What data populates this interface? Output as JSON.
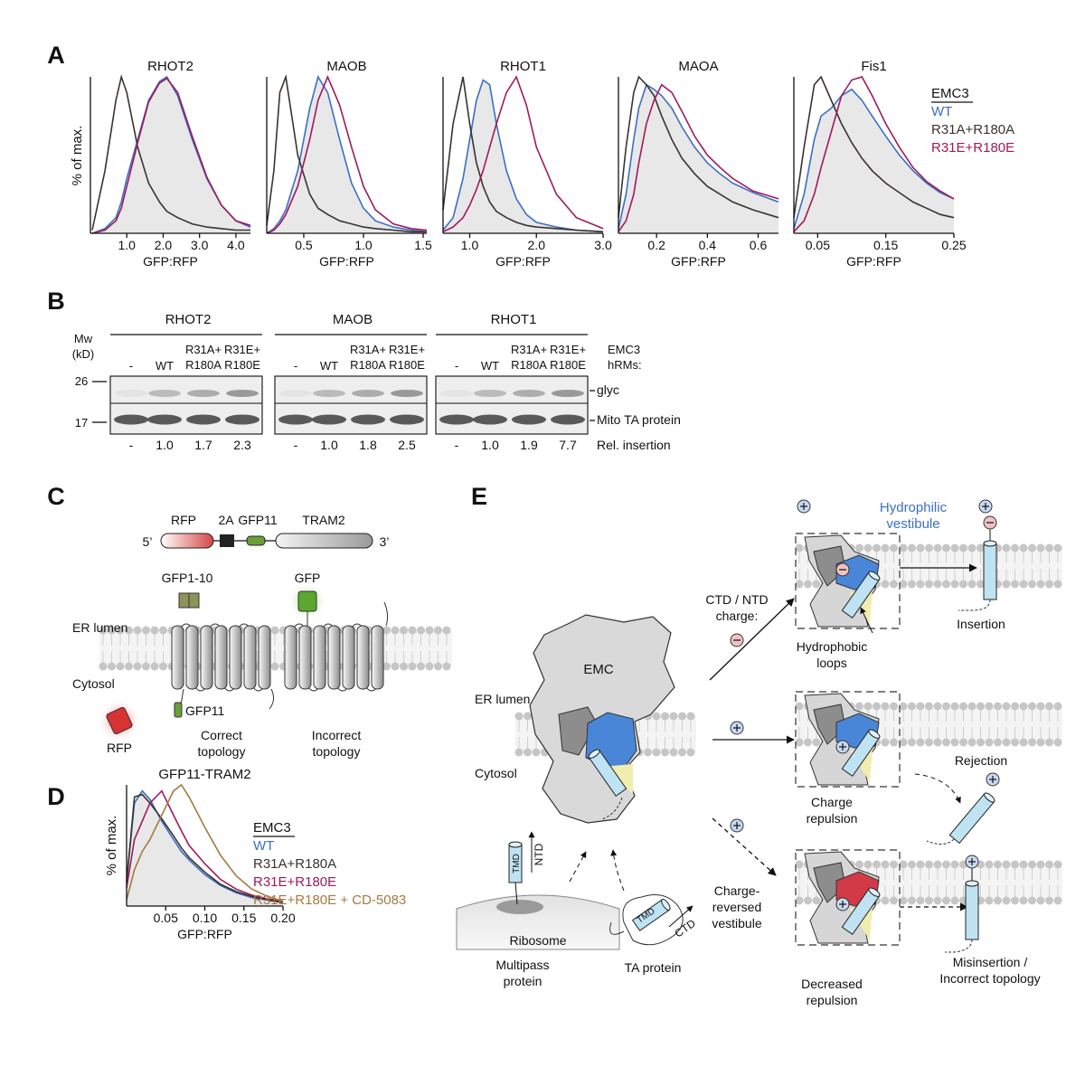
{
  "panel_labels": [
    "A",
    "B",
    "C",
    "D",
    "E"
  ],
  "panel_a": {
    "y_label": "% of max.",
    "x_label": "GFP:RFP",
    "legend": {
      "title": "EMC3",
      "entries": [
        {
          "name": "WT",
          "color": "#3b6fc4"
        },
        {
          "name": "R31A+R180A",
          "color": "#3a332f"
        },
        {
          "name": "R31E+R180E",
          "color": "#9e1a5c"
        }
      ]
    },
    "fill": {
      "series": 0,
      "color": "#e8e8e8"
    },
    "charts": [
      {
        "type": "line",
        "title": "RHOT2",
        "xlim": [
          0,
          4.4
        ],
        "ylim": [
          0,
          100
        ],
        "xticks": [
          {
            "value": 1,
            "label": "1.0"
          },
          {
            "value": 2,
            "label": "2.0"
          },
          {
            "value": 3,
            "label": "3.0"
          },
          {
            "value": 4,
            "label": "4.0"
          }
        ],
        "x": [
          0.05,
          0.4,
          0.7,
          0.85,
          1.0,
          1.3,
          1.6,
          1.9,
          2.1,
          2.4,
          2.8,
          3.2,
          3.6,
          4.0,
          4.4
        ],
        "series": [
          {
            "values": [
              0,
              3,
              10,
              20,
              35,
              60,
              85,
              97,
              100,
              88,
              60,
              35,
              18,
              8,
              4
            ]
          },
          {
            "values": [
              2,
              40,
              85,
              100,
              90,
              55,
              32,
              20,
              14,
              10,
              6,
              4,
              3,
              2,
              2
            ]
          },
          {
            "values": [
              0,
              2,
              8,
              16,
              30,
              58,
              84,
              96,
              99,
              90,
              62,
              36,
              18,
              8,
              5
            ]
          }
        ]
      },
      {
        "type": "line",
        "title": "MAOB",
        "xlim": [
          0.19,
          1.53
        ],
        "ylim": [
          0,
          100
        ],
        "xticks": [
          0.5,
          {
            "value": 1,
            "label": "1.0"
          },
          1.5
        ],
        "x": [
          0.19,
          0.25,
          0.3,
          0.35,
          0.45,
          0.55,
          0.62,
          0.7,
          0.8,
          0.9,
          1.0,
          1.1,
          1.25,
          1.4,
          1.53
        ],
        "series": [
          {
            "values": [
              0,
              3,
              8,
              15,
              40,
              80,
              100,
              90,
              60,
              32,
              16,
              8,
              4,
              2,
              1
            ]
          },
          {
            "values": [
              5,
              40,
              90,
              100,
              50,
              25,
              16,
              12,
              8,
              6,
              4,
              3,
              2,
              1,
              1
            ]
          },
          {
            "values": [
              0,
              2,
              6,
              12,
              30,
              60,
              85,
              100,
              82,
              55,
              30,
              15,
              6,
              3,
              2
            ]
          }
        ]
      },
      {
        "type": "line",
        "title": "RHOT1",
        "xlim": [
          0.6,
          3.0
        ],
        "ylim": [
          0,
          100
        ],
        "xticks": [
          {
            "value": 1,
            "label": "1.0"
          },
          {
            "value": 2,
            "label": "2.0"
          },
          {
            "value": 3,
            "label": "3.0"
          }
        ],
        "x": [
          0.6,
          0.75,
          0.9,
          1.0,
          1.1,
          1.2,
          1.3,
          1.4,
          1.55,
          1.7,
          1.85,
          2.0,
          2.3,
          2.6,
          3.0
        ],
        "series": [
          {
            "values": [
              2,
              10,
              35,
              60,
              85,
              98,
              95,
              70,
              40,
              22,
              12,
              7,
              4,
              2,
              1
            ]
          },
          {
            "values": [
              15,
              70,
              100,
              70,
              45,
              30,
              20,
              14,
              10,
              7,
              5,
              4,
              3,
              2,
              1
            ]
          },
          {
            "values": [
              1,
              4,
              10,
              18,
              28,
              40,
              55,
              70,
              90,
              100,
              82,
              55,
              25,
              10,
              3
            ]
          }
        ]
      },
      {
        "type": "line",
        "title": "MAOA",
        "xlim": [
          0.05,
          0.68
        ],
        "ylim": [
          0,
          100
        ],
        "xticks": [
          0.2,
          0.4,
          0.6
        ],
        "x": [
          0.05,
          0.08,
          0.11,
          0.13,
          0.16,
          0.19,
          0.22,
          0.26,
          0.3,
          0.35,
          0.4,
          0.45,
          0.5,
          0.58,
          0.68
        ],
        "series": [
          {
            "values": [
              3,
              25,
              60,
              80,
              95,
              92,
              88,
              80,
              68,
              55,
              45,
              38,
              32,
              26,
              20
            ]
          },
          {
            "values": [
              10,
              55,
              90,
              100,
              95,
              88,
              75,
              60,
              48,
              38,
              30,
              25,
              20,
              15,
              10
            ]
          },
          {
            "values": [
              1,
              8,
              25,
              45,
              70,
              85,
              95,
              90,
              78,
              62,
              50,
              42,
              35,
              27,
              22
            ]
          }
        ]
      },
      {
        "type": "line",
        "title": "Fis1",
        "xlim": [
          0.015,
          0.25
        ],
        "ylim": [
          0,
          100
        ],
        "xticks": [
          0.05,
          0.15,
          0.25
        ],
        "x": [
          0.015,
          0.03,
          0.045,
          0.055,
          0.07,
          0.085,
          0.1,
          0.115,
          0.13,
          0.15,
          0.17,
          0.19,
          0.21,
          0.23,
          0.25
        ],
        "series": [
          {
            "values": [
              3,
              25,
              60,
              75,
              80,
              88,
              92,
              85,
              75,
              62,
              50,
              40,
              32,
              26,
              22
            ]
          },
          {
            "values": [
              10,
              55,
              95,
              100,
              85,
              70,
              58,
              48,
              40,
              32,
              26,
              20,
              16,
              12,
              10
            ]
          },
          {
            "values": [
              1,
              8,
              25,
              42,
              65,
              88,
              98,
              100,
              88,
              70,
              55,
              42,
              33,
              27,
              22
            ]
          }
        ]
      }
    ]
  },
  "panel_b": {
    "mw": [
      "Mw",
      "(kD)"
    ],
    "markers": [
      "26",
      "17"
    ],
    "groups": [
      {
        "title": "RHOT2",
        "rel": [
          "-",
          "1.0",
          "1.7",
          "2.3"
        ]
      },
      {
        "title": "MAOB",
        "rel": [
          "-",
          "1.0",
          "1.8",
          "2.5"
        ]
      },
      {
        "title": "RHOT1",
        "rel": [
          "-",
          "1.0",
          "1.9",
          "7.7"
        ]
      }
    ],
    "columns": [
      [
        "-"
      ],
      [
        "WT"
      ],
      [
        "R31A+",
        "R180A"
      ],
      [
        "R31E+",
        "R180E"
      ]
    ],
    "condition_label": [
      "EMC3",
      "hRMs:"
    ],
    "band_labels": [
      "glyc",
      "Mito TA protein"
    ],
    "rel_label": "Rel. insertion"
  },
  "panel_c": {
    "construct": {
      "rfp": "RFP",
      "p2a": "2A",
      "gfp11": "GFP11",
      "tram2": "TRAM2",
      "five": "5’",
      "three": "3’"
    },
    "gfp1_10": "GFP1-10",
    "gfp": "GFP",
    "er_lumen": "ER lumen",
    "cytosol": "Cytosol",
    "gfp11": "GFP11",
    "rfp": "RFP",
    "correct": [
      "Correct",
      "topology"
    ],
    "incorrect": [
      "Incorrect",
      "topology"
    ]
  },
  "panel_d": {
    "y_label": "% of max.",
    "x_label": "GFP:RFP",
    "legend": {
      "title": "EMC3",
      "entries": [
        {
          "name": "WT",
          "color": "#3b6fc4"
        },
        {
          "name": "R31A+R180A",
          "color": "#3a332f"
        },
        {
          "name": "R31E+R180E",
          "color": "#9e1a5c"
        },
        {
          "name": "R31E+R180E + CD-5083",
          "color": "#a37b3e"
        }
      ]
    },
    "fill": {
      "series": 0,
      "color": "#e8e8e8"
    },
    "chart": {
      "type": "line",
      "title": "GFP11-TRAM2",
      "xlim": [
        0,
        0.2
      ],
      "ylim": [
        0,
        100
      ],
      "xticks": [
        0.05,
        {
          "value": 0.1,
          "label": "0.10"
        },
        0.15,
        {
          "value": 0.2,
          "label": "0.20"
        }
      ],
      "x": [
        0,
        0.01,
        0.02,
        0.03,
        0.045,
        0.06,
        0.07,
        0.08,
        0.1,
        0.12,
        0.14,
        0.16,
        0.18,
        0.2
      ],
      "series": [
        {
          "values": [
            20,
            85,
            95,
            88,
            70,
            55,
            45,
            38,
            26,
            17,
            11,
            7,
            5,
            3
          ]
        },
        {
          "values": [
            20,
            90,
            92,
            85,
            72,
            58,
            48,
            40,
            28,
            18,
            12,
            8,
            5,
            3
          ]
        },
        {
          "values": [
            15,
            55,
            70,
            85,
            95,
            75,
            62,
            50,
            35,
            22,
            14,
            9,
            6,
            4
          ]
        },
        {
          "values": [
            5,
            30,
            45,
            55,
            75,
            95,
            100,
            90,
            65,
            42,
            25,
            14,
            8,
            4
          ]
        }
      ]
    }
  },
  "panel_e": {
    "emc": "EMC",
    "er_lumen": "ER lumen",
    "cytosol": "Cytosol",
    "ntd": "NTD",
    "tmd": "TMD",
    "ribosome": "Ribosome",
    "multipass": [
      "Multipass",
      "protein"
    ],
    "ta_tmd": "TMD",
    "ctd": "CTD",
    "ta_protein": "TA protein",
    "charge": [
      "CTD / NTD",
      "charge:"
    ],
    "charge_reversed": [
      "Charge-",
      "reversed",
      "vestibule"
    ],
    "hydrophilic": [
      "Hydrophilic",
      "vestibule"
    ],
    "hydrophobic": [
      "Hydrophobic",
      "loops"
    ],
    "insertion": "Insertion",
    "rejection": "Rejection",
    "charge_repulsion": [
      "Charge",
      "repulsion"
    ],
    "decreased": [
      "Decreased",
      "repulsion"
    ],
    "misinsertion": [
      "Misinsertion /",
      "Incorrect topology"
    ]
  }
}
